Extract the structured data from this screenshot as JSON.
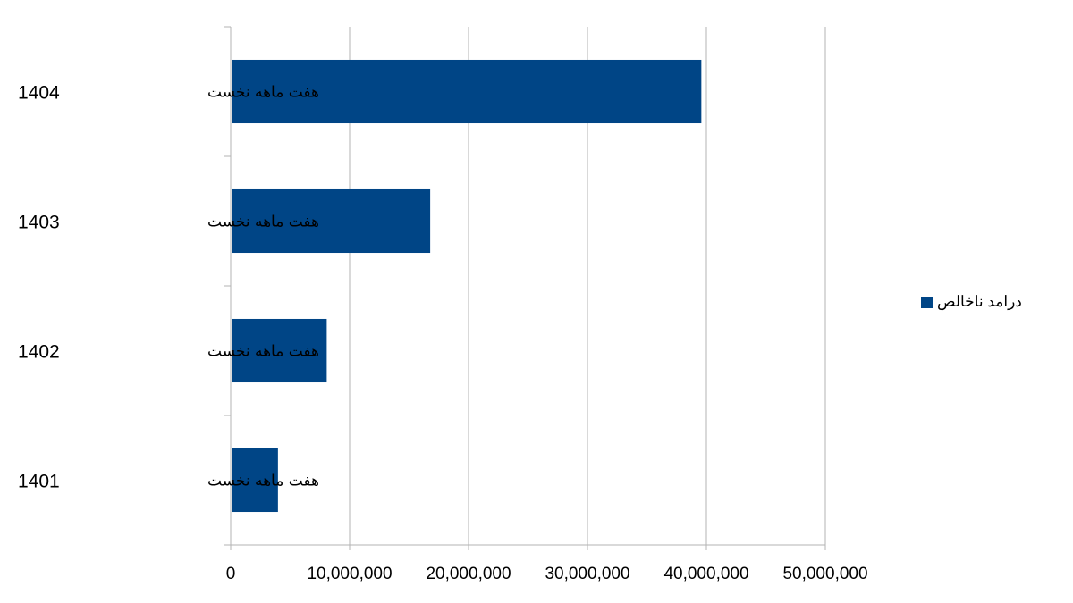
{
  "chart_data": {
    "type": "bar",
    "orientation": "horizontal",
    "categories": [
      {
        "text": "هفت ماهه نخست",
        "year": "1401"
      },
      {
        "text": "هفت ماهه نخست",
        "year": "1402"
      },
      {
        "text": "هفت ماهه نخست",
        "year": "1403"
      },
      {
        "text": "هفت ماهه نخست",
        "year": "1404"
      }
    ],
    "series": [
      {
        "name": "درامد ناخالص",
        "color": "#004586",
        "values": [
          3900000,
          8000000,
          16700000,
          39500000
        ]
      }
    ],
    "xlim": [
      0,
      50000000
    ],
    "xticks": [
      "0",
      "10,000,000",
      "20,000,000",
      "30,000,000",
      "40,000,000",
      "50,000,000"
    ],
    "grid": true,
    "legend": "right"
  }
}
